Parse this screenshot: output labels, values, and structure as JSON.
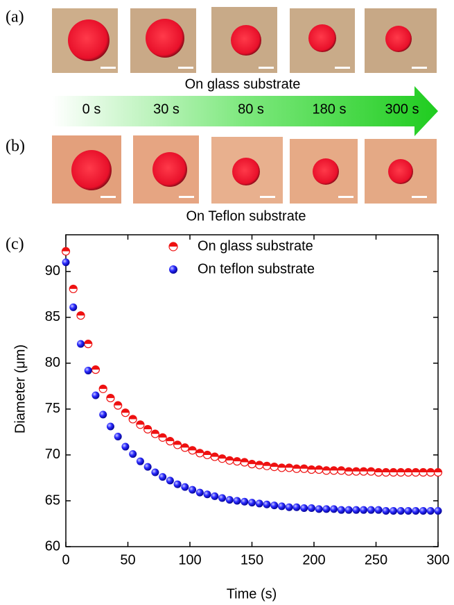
{
  "panels": {
    "a": {
      "label": "(a)",
      "caption": "On glass substrate"
    },
    "times": [
      "0 s",
      "30 s",
      "80 s",
      "180 s",
      "300 s"
    ],
    "b": {
      "label": "(b)",
      "caption": "On Teflon substrate"
    },
    "c": {
      "label": "(c)"
    }
  },
  "chart_data": {
    "type": "scatter",
    "xlabel": "Time (s)",
    "ylabel": "Diameter (μm)",
    "x": [
      0,
      6,
      12,
      18,
      24,
      30,
      36,
      42,
      48,
      54,
      60,
      66,
      72,
      78,
      84,
      90,
      96,
      102,
      108,
      114,
      120,
      126,
      132,
      138,
      144,
      150,
      156,
      162,
      168,
      174,
      180,
      186,
      192,
      198,
      204,
      210,
      216,
      222,
      228,
      234,
      240,
      246,
      252,
      258,
      264,
      270,
      276,
      282,
      288,
      294,
      300
    ],
    "series": [
      {
        "name": "On glass substrate",
        "color": "#ee1111",
        "marker": "half",
        "values": [
          92.2,
          88.1,
          85.2,
          82.1,
          79.3,
          77.2,
          76.2,
          75.4,
          74.6,
          73.9,
          73.3,
          72.8,
          72.3,
          71.9,
          71.5,
          71.1,
          70.8,
          70.5,
          70.2,
          70.0,
          69.8,
          69.6,
          69.4,
          69.3,
          69.2,
          69.0,
          68.9,
          68.8,
          68.7,
          68.6,
          68.6,
          68.5,
          68.5,
          68.4,
          68.4,
          68.3,
          68.3,
          68.3,
          68.2,
          68.2,
          68.2,
          68.2,
          68.1,
          68.1,
          68.1,
          68.1,
          68.1,
          68.1,
          68.1,
          68.1,
          68.1
        ]
      },
      {
        "name": "On teflon substrate",
        "color": "#1a1aee",
        "marker": "sphere",
        "values": [
          91.0,
          86.1,
          82.1,
          79.2,
          76.5,
          74.4,
          73.1,
          72.0,
          70.9,
          70.1,
          69.3,
          68.7,
          68.1,
          67.6,
          67.2,
          66.8,
          66.5,
          66.2,
          65.9,
          65.7,
          65.5,
          65.3,
          65.1,
          65.0,
          64.9,
          64.8,
          64.7,
          64.6,
          64.5,
          64.4,
          64.3,
          64.3,
          64.2,
          64.2,
          64.1,
          64.1,
          64.1,
          64.0,
          64.0,
          64.0,
          64.0,
          64.0,
          64.0,
          63.9,
          63.9,
          63.9,
          63.9,
          63.9,
          63.9,
          63.9,
          63.9
        ]
      }
    ],
    "xlim": [
      0,
      300
    ],
    "xticks": [
      0,
      50,
      100,
      150,
      200,
      250,
      300
    ],
    "ylim": [
      60,
      94
    ],
    "yticks": [
      60,
      65,
      70,
      75,
      80,
      85,
      90
    ]
  }
}
